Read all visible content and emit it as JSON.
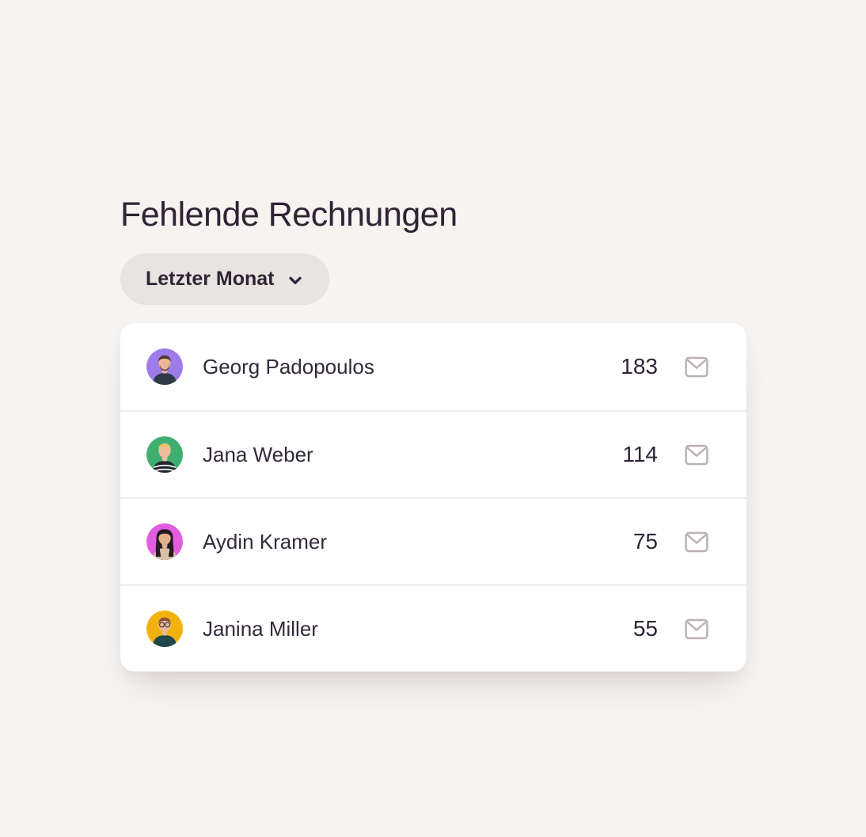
{
  "header": {
    "title": "Fehlende Rechnungen"
  },
  "filter": {
    "label": "Letzter Monat",
    "icon": "chevron-down-icon"
  },
  "colors": {
    "page_background": "#F6F3F0",
    "card_background": "#FFFFFF",
    "text": "#2E2435",
    "pill_background": "#E8E4E1",
    "divider": "#F0EDEB",
    "mail_icon": "#BBB2B4"
  },
  "list": {
    "row_icon": "mail-icon",
    "rows": [
      {
        "name": "Georg Padopoulos",
        "count": "183",
        "avatar": {
          "bg": "#9D7BE8",
          "hair": "#4A3A2E",
          "skin": "#E9B795",
          "shirt": "#2E3A45",
          "beard": true,
          "glasses": false,
          "long_hair": false,
          "stripes": false
        }
      },
      {
        "name": "Jana Weber",
        "count": "114",
        "avatar": {
          "bg": "#3FAE71",
          "hair": "#E5C36B",
          "skin": "#EDBD9C",
          "shirt": "#23262B",
          "beard": false,
          "glasses": false,
          "long_hair": false,
          "stripes": true
        }
      },
      {
        "name": "Aydin Kramer",
        "count": "75",
        "avatar": {
          "bg": "#E35EDF",
          "hair": "#241B20",
          "skin": "#E3B18E",
          "shirt": "#D9C0A8",
          "beard": false,
          "glasses": false,
          "long_hair": true,
          "stripes": false
        }
      },
      {
        "name": "Janina Miller",
        "count": "55",
        "avatar": {
          "bg": "#F2B20C",
          "hair": "#8A4F33",
          "skin": "#ECB793",
          "shirt": "#20484B",
          "beard": false,
          "glasses": true,
          "long_hair": false,
          "stripes": false
        }
      }
    ]
  }
}
